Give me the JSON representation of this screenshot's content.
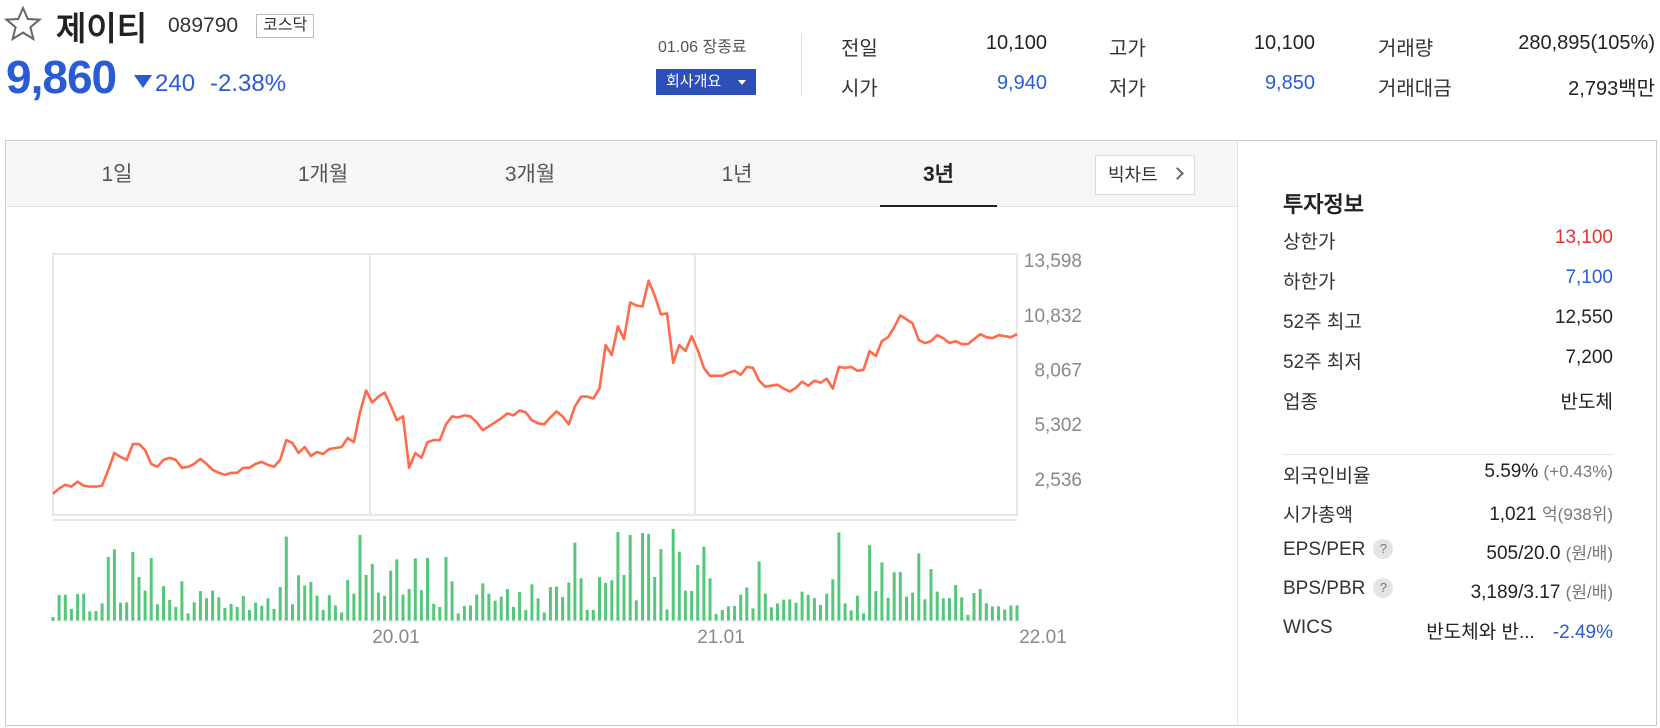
{
  "stock": {
    "name": "제이티",
    "code": "089790",
    "market": "코스닥",
    "price": "9,860",
    "change": "240",
    "change_pct": "-2.38%",
    "close_time": "01.06 장종료",
    "company_button": "회사개요",
    "direction": "down",
    "color_down": "#2a5bd7"
  },
  "quote": {
    "prev_label": "전일",
    "prev": "10,100",
    "high_label": "고가",
    "high": "10,100",
    "volume_label": "거래량",
    "volume": "280,895(105%)",
    "open_label": "시가",
    "open": "9,940",
    "low_label": "저가",
    "low": "9,850",
    "amount_label": "거래대금",
    "amount": "2,793백만"
  },
  "tabs": [
    {
      "label": "1일",
      "active": false
    },
    {
      "label": "1개월",
      "active": false
    },
    {
      "label": "3개월",
      "active": false
    },
    {
      "label": "1년",
      "active": false
    },
    {
      "label": "3년",
      "active": true
    }
  ],
  "big_chart_label": "빅차트",
  "chart_data": {
    "type": "line",
    "y_ticks": [
      "13,598",
      "10,832",
      "8,067",
      "5,302",
      "2,536"
    ],
    "y_tick_values": [
      13598,
      10832,
      8067,
      5302,
      2536
    ],
    "x_ticks": [
      "20.01",
      "21.01",
      "22.01"
    ],
    "line_color": "#ff6a4b",
    "volume_color": "#55c77a",
    "grid": true,
    "price_series": [
      1800,
      2050,
      2250,
      2150,
      2400,
      2200,
      2150,
      2150,
      2200,
      3000,
      3850,
      3650,
      3500,
      4300,
      4300,
      4000,
      3300,
      3150,
      3500,
      3600,
      3500,
      3100,
      3150,
      3300,
      3550,
      3300,
      3000,
      2850,
      2750,
      2850,
      2850,
      3100,
      3100,
      3300,
      3400,
      3250,
      3150,
      3500,
      4500,
      4350,
      3850,
      4150,
      3700,
      3900,
      3800,
      4050,
      4100,
      4150,
      4600,
      4400,
      5900,
      7000,
      6400,
      6700,
      6900,
      6250,
      5500,
      5700,
      3100,
      3850,
      3600,
      4400,
      4500,
      4500,
      5300,
      5700,
      5650,
      5750,
      5700,
      5400,
      5000,
      5200,
      5400,
      5600,
      5850,
      5750,
      6000,
      5900,
      5500,
      5350,
      5300,
      5650,
      5950,
      5700,
      5300,
      6200,
      6700,
      6700,
      6600,
      7100,
      9300,
      8800,
      10250,
      9600,
      11450,
      11300,
      11250,
      12550,
      11800,
      10850,
      10900,
      8400,
      9300,
      9000,
      9750,
      9050,
      8150,
      7750,
      7750,
      7750,
      7900,
      8000,
      7800,
      8200,
      8150,
      7500,
      7200,
      7250,
      7300,
      7100,
      6950,
      7150,
      7450,
      7250,
      7500,
      7400,
      7600,
      7100,
      8200,
      8150,
      8200,
      8000,
      8050,
      9000,
      8750,
      9500,
      9700,
      10200,
      10800,
      10600,
      10400,
      9550,
      9400,
      9500,
      9800,
      9650,
      9400,
      9500,
      9350,
      9350,
      9600,
      9850,
      9700,
      9650,
      9800,
      9750,
      9700,
      9850
    ]
  },
  "invest": {
    "title": "투자정보",
    "rows": [
      {
        "label": "상한가",
        "value": "13,100"
      },
      {
        "label": "하한가",
        "value": "7,100"
      },
      {
        "label": "52주 최고",
        "value": "12,550"
      },
      {
        "label": "52주 최저",
        "value": "7,200"
      },
      {
        "label": "업종",
        "value": "반도체"
      }
    ],
    "foreign_label": "외국인비율",
    "foreign_value": "5.59%",
    "foreign_change": "(+0.43%)",
    "cap_label": "시가총액",
    "cap_value": "1,021",
    "cap_unit": "억",
    "cap_rank": "(938위)",
    "eps_label": "EPS/PER",
    "eps_value": "505/20.0",
    "eps_unit": "(원/배)",
    "bps_label": "BPS/PBR",
    "bps_value": "3,189/3.17",
    "bps_unit": "(원/배)",
    "help": "?",
    "wics_label": "WICS",
    "wics_value": "반도체와 반...",
    "wics_pct": "-2.49%"
  }
}
